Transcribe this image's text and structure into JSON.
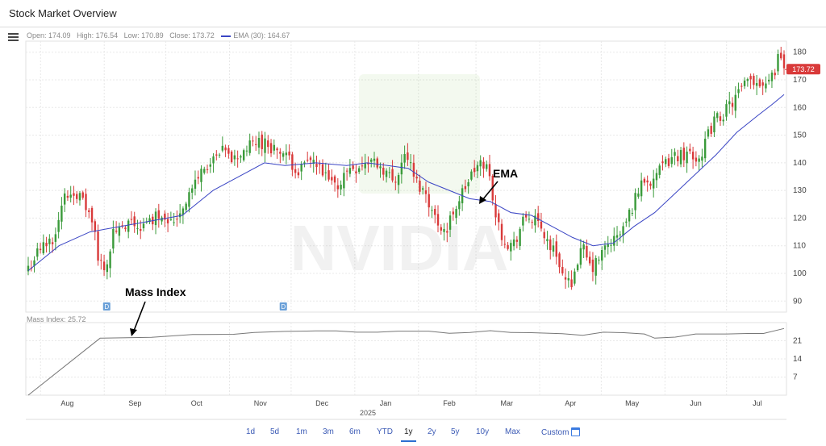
{
  "app": {
    "title": "Stock Market Overview"
  },
  "ohlc": {
    "open": "Open: 174.09",
    "high": "High: 176.54",
    "low": "Low: 170.89",
    "close": "Close: 173.72",
    "ema": "EMA (30): 164.67"
  },
  "mass_index_label": "Mass Index: 25.72",
  "annotations": {
    "ema": "EMA",
    "mass": "Mass Index"
  },
  "event_markers": [
    "D",
    "D"
  ],
  "year_label": "2025",
  "current_price": "173.72",
  "ranges": [
    {
      "label": "1d",
      "active": false
    },
    {
      "label": "5d",
      "active": false
    },
    {
      "label": "1m",
      "active": false
    },
    {
      "label": "3m",
      "active": false
    },
    {
      "label": "6m",
      "active": false
    },
    {
      "label": "YTD",
      "active": false
    },
    {
      "label": "1y",
      "active": true
    },
    {
      "label": "2y",
      "active": false
    },
    {
      "label": "5y",
      "active": false
    },
    {
      "label": "10y",
      "active": false
    },
    {
      "label": "Max",
      "active": false
    },
    {
      "label": "Custom",
      "active": false
    }
  ],
  "colors": {
    "up": "#3a9a3a",
    "down": "#d93a3a",
    "ema": "#3a45c4",
    "mass": "#777777",
    "price_tag": "#d93a3a",
    "link": "#3b5ab5"
  },
  "icons": {
    "menu": "hamburger-icon",
    "calendar": "calendar-icon"
  },
  "chart_data": [
    {
      "type": "candlestick",
      "series": [
        {
          "name": "EMA (30)"
        }
      ],
      "x_ticks": [
        "Aug",
        "Sep",
        "Oct",
        "Nov",
        "Dec",
        "Jan",
        "Feb",
        "Mar",
        "Apr",
        "May",
        "Jun",
        "Jul"
      ],
      "y_ticks": [
        90,
        100,
        110,
        120,
        130,
        140,
        150,
        160,
        170,
        180
      ],
      "ylim": [
        86,
        184
      ],
      "grid": true,
      "close_path": [
        [
          0,
          102
        ],
        [
          5,
          108
        ],
        [
          12,
          113
        ],
        [
          18,
          128
        ],
        [
          23,
          130
        ],
        [
          28,
          124
        ],
        [
          32,
          117
        ],
        [
          34,
          104
        ],
        [
          38,
          103
        ],
        [
          42,
          116
        ],
        [
          46,
          115
        ],
        [
          50,
          118
        ],
        [
          54,
          117
        ],
        [
          57,
          117
        ],
        [
          62,
          121
        ],
        [
          66,
          122
        ],
        [
          70,
          118
        ],
        [
          75,
          124
        ],
        [
          80,
          131
        ],
        [
          85,
          138
        ],
        [
          90,
          140
        ],
        [
          95,
          144
        ],
        [
          100,
          141
        ],
        [
          106,
          145
        ],
        [
          112,
          148
        ],
        [
          118,
          146
        ],
        [
          124,
          143
        ],
        [
          128,
          140
        ],
        [
          132,
          137
        ],
        [
          138,
          141
        ],
        [
          144,
          135
        ],
        [
          150,
          131
        ],
        [
          156,
          138
        ],
        [
          162,
          139
        ],
        [
          168,
          141
        ],
        [
          174,
          137
        ],
        [
          178,
          133
        ],
        [
          184,
          144
        ],
        [
          188,
          134
        ],
        [
          192,
          130
        ],
        [
          194,
          129
        ],
        [
          197,
          121
        ],
        [
          200,
          118
        ],
        [
          204,
          115
        ],
        [
          206,
          121
        ],
        [
          210,
          127
        ],
        [
          214,
          133
        ],
        [
          218,
          138
        ],
        [
          222,
          140
        ],
        [
          224,
          137
        ],
        [
          226,
          129
        ],
        [
          228,
          119
        ],
        [
          230,
          115
        ],
        [
          233,
          111
        ],
        [
          236,
          110
        ],
        [
          240,
          117
        ],
        [
          243,
          121
        ],
        [
          246,
          119
        ],
        [
          250,
          116
        ],
        [
          254,
          110
        ],
        [
          258,
          106
        ],
        [
          261,
          97
        ],
        [
          264,
          96
        ],
        [
          267,
          104
        ],
        [
          270,
          109
        ],
        [
          274,
          101
        ],
        [
          277,
          104
        ],
        [
          280,
          108
        ],
        [
          283,
          111
        ],
        [
          287,
          113
        ],
        [
          291,
          118
        ],
        [
          295,
          126
        ],
        [
          299,
          134
        ],
        [
          303,
          134
        ],
        [
          308,
          137
        ],
        [
          313,
          142
        ],
        [
          318,
          143
        ],
        [
          322,
          144
        ],
        [
          326,
          141
        ],
        [
          330,
          148
        ],
        [
          334,
          155
        ],
        [
          339,
          158
        ],
        [
          344,
          163
        ],
        [
          348,
          167
        ],
        [
          352,
          170
        ],
        [
          356,
          169
        ],
        [
          360,
          170
        ],
        [
          364,
          174
        ],
        [
          366,
          182
        ],
        [
          368,
          173.72
        ]
      ],
      "ema_path": [
        [
          0,
          101
        ],
        [
          15,
          110
        ],
        [
          30,
          115
        ],
        [
          45,
          117
        ],
        [
          60,
          119
        ],
        [
          75,
          121
        ],
        [
          90,
          130
        ],
        [
          105,
          136
        ],
        [
          115,
          140
        ],
        [
          125,
          139
        ],
        [
          140,
          140
        ],
        [
          155,
          139
        ],
        [
          165,
          140
        ],
        [
          175,
          139
        ],
        [
          185,
          138
        ],
        [
          195,
          133
        ],
        [
          205,
          130
        ],
        [
          215,
          127
        ],
        [
          225,
          126
        ],
        [
          235,
          122
        ],
        [
          245,
          121
        ],
        [
          255,
          117
        ],
        [
          265,
          113
        ],
        [
          275,
          110
        ],
        [
          285,
          111
        ],
        [
          295,
          117
        ],
        [
          305,
          122
        ],
        [
          315,
          129
        ],
        [
          325,
          136
        ],
        [
          335,
          143
        ],
        [
          345,
          151
        ],
        [
          355,
          157
        ],
        [
          362,
          161
        ],
        [
          368,
          164.67
        ]
      ]
    },
    {
      "type": "line",
      "series": [
        {
          "name": "Mass Index"
        }
      ],
      "y_ticks": [
        7,
        14,
        21
      ],
      "ylim": [
        0,
        28
      ],
      "path": [
        [
          0,
          0
        ],
        [
          35,
          22
        ],
        [
          60,
          22.3
        ],
        [
          80,
          23.4
        ],
        [
          100,
          23.5
        ],
        [
          110,
          24.2
        ],
        [
          125,
          24.6
        ],
        [
          140,
          24.8
        ],
        [
          150,
          24.8
        ],
        [
          160,
          24.3
        ],
        [
          170,
          24.3
        ],
        [
          180,
          24.7
        ],
        [
          195,
          24.7
        ],
        [
          205,
          23.9
        ],
        [
          215,
          24.2
        ],
        [
          225,
          24.9
        ],
        [
          235,
          24.2
        ],
        [
          245,
          24.1
        ],
        [
          260,
          23.7
        ],
        [
          270,
          23.1
        ],
        [
          280,
          24.3
        ],
        [
          290,
          24.1
        ],
        [
          300,
          23.6
        ],
        [
          305,
          22.0
        ],
        [
          315,
          22.4
        ],
        [
          325,
          23.6
        ],
        [
          340,
          23.6
        ],
        [
          350,
          23.8
        ],
        [
          358,
          23.8
        ],
        [
          368,
          25.72
        ]
      ]
    }
  ]
}
